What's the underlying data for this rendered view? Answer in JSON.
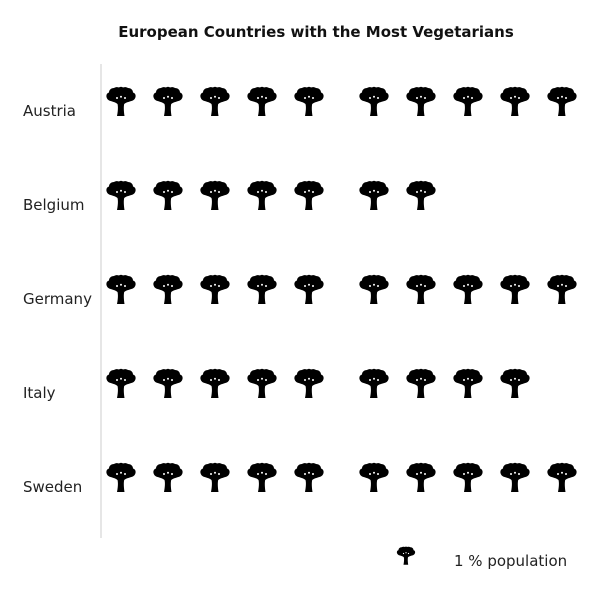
{
  "chart_data": {
    "type": "pictograph",
    "title": "European Countries with the Most Vegetarians",
    "icon": "broccoli-icon",
    "icon_color": "#000000",
    "axis_line_color": "#cccccc",
    "unit_label": "1 % population",
    "categories": [
      "Austria",
      "Belgium",
      "Germany",
      "Italy",
      "Sweden"
    ],
    "values": [
      10,
      7,
      10,
      9,
      10
    ],
    "legend_position": "bottom-right"
  }
}
